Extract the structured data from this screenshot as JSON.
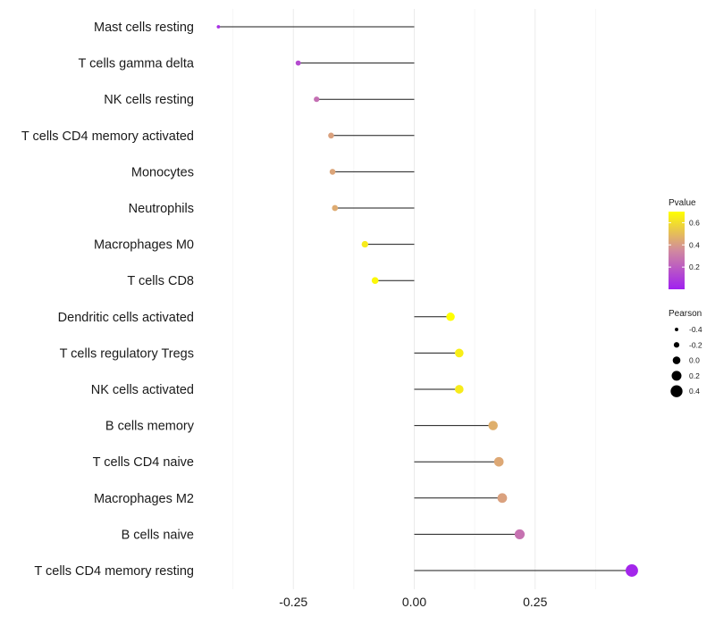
{
  "chart_data": {
    "type": "lollipop",
    "title": "",
    "xlabel": "",
    "ylabel": "",
    "xlim": [
      -0.375,
      0.54
    ],
    "x_ticks": [
      -0.25,
      0.0,
      0.25
    ],
    "x_tick_labels": [
      "-0.25",
      "0.00",
      "0.25"
    ],
    "grid": true,
    "categories": [
      "Mast cells resting",
      "T cells gamma delta",
      "NK cells resting",
      "T cells CD4 memory activated",
      "Monocytes",
      "Neutrophils",
      "Macrophages M0",
      "T cells CD8",
      "Dendritic cells activated",
      "T cells regulatory  Tregs ",
      "NK cells activated",
      "B cells memory",
      "T cells CD4 naive",
      "Macrophages M2",
      "B cells naive",
      "T cells CD4 memory resting"
    ],
    "pearson": [
      -0.405,
      -0.24,
      -0.202,
      -0.172,
      -0.169,
      -0.164,
      -0.102,
      -0.081,
      0.075,
      0.093,
      0.093,
      0.163,
      0.175,
      0.182,
      0.218,
      0.45
    ],
    "pvalue": [
      0.05,
      0.14,
      0.26,
      0.42,
      0.43,
      0.45,
      0.64,
      0.68,
      0.7,
      0.65,
      0.64,
      0.46,
      0.44,
      0.42,
      0.27,
      0.02
    ],
    "legend": {
      "color_title": "Pvalue",
      "color_ticks": [
        0.2,
        0.4,
        0.6
      ],
      "color_tick_labels": [
        "0.2",
        "0.4",
        "0.6"
      ],
      "color_range": [
        0.0,
        0.7
      ],
      "color_low": "#a020f0",
      "color_mid": "#d18a9e",
      "color_high": "#ffff00",
      "size_title": "Pearson",
      "size_values": [
        -0.4,
        -0.2,
        0.0,
        0.2,
        0.4
      ],
      "size_labels": [
        "-0.4",
        "-0.2",
        "0.0",
        "0.2",
        "0.4"
      ],
      "position": "right"
    }
  }
}
